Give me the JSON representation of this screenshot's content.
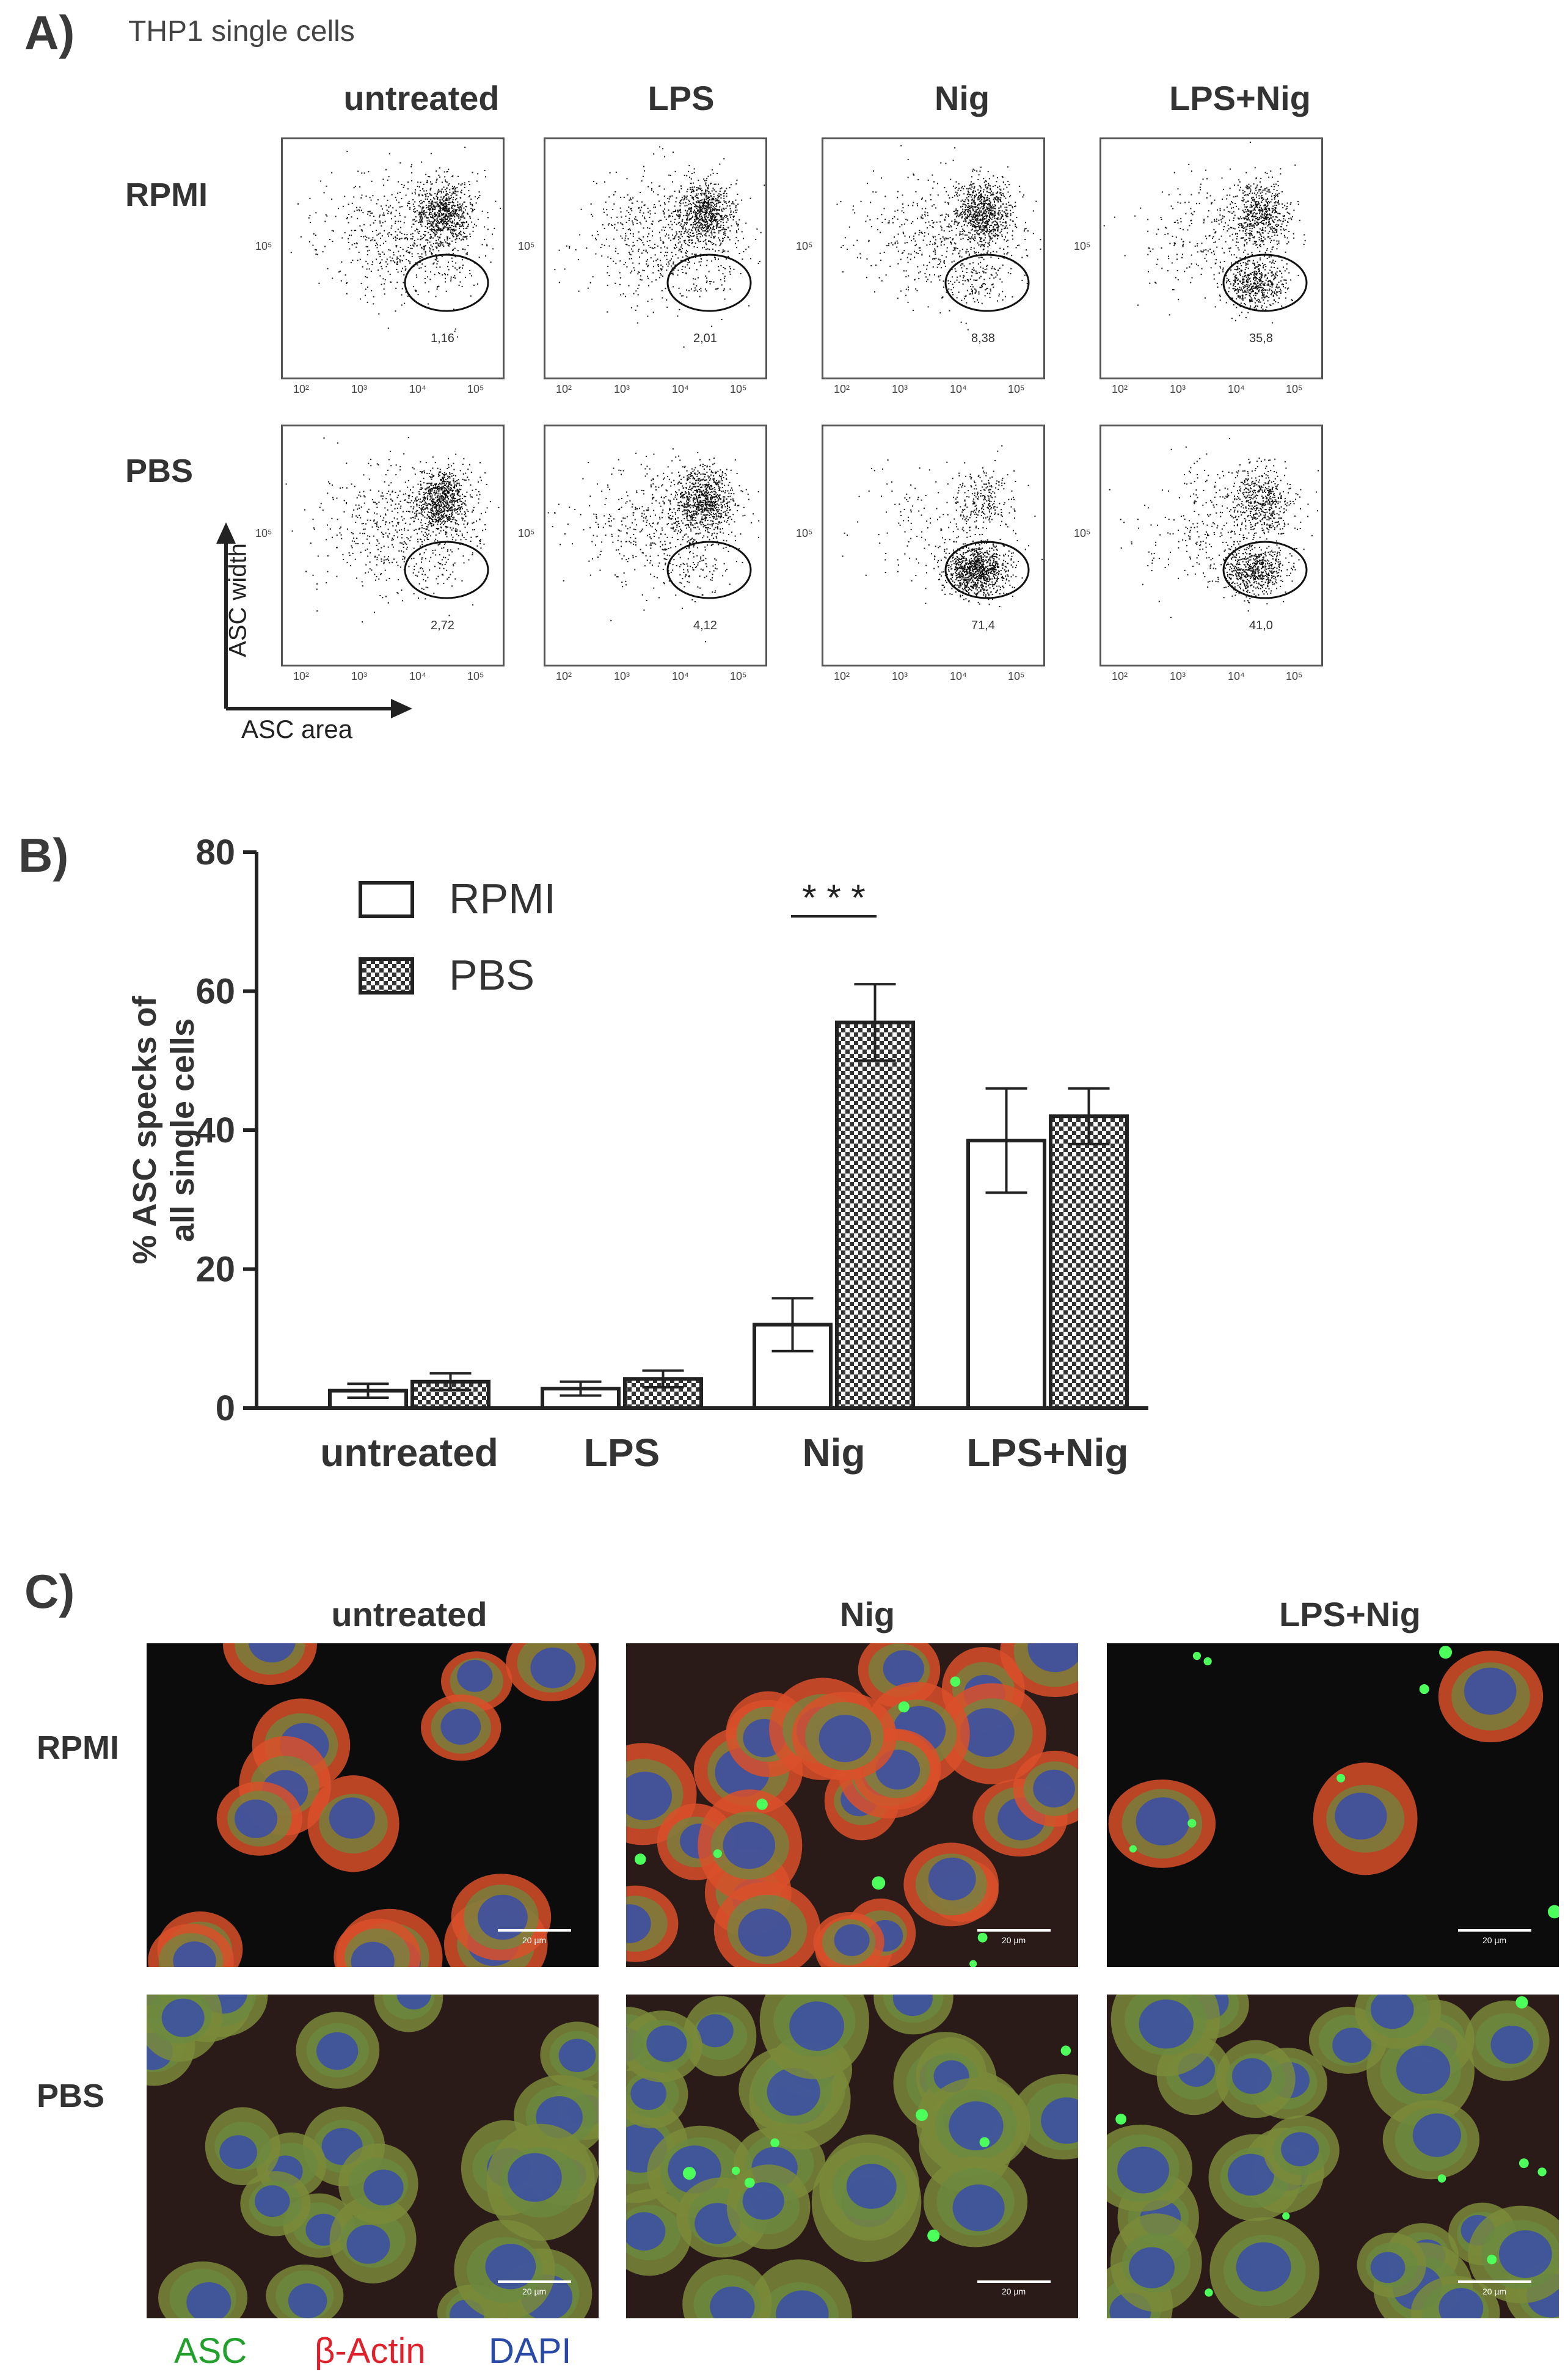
{
  "panel_a": {
    "letter": "A)",
    "subtitle": "THP1 single cells",
    "columns": [
      "untreated",
      "LPS",
      "Nig",
      "LPS+Nig"
    ],
    "rows": [
      {
        "label": "RPMI",
        "gates": [
          "1,16",
          "2,01",
          "8,38",
          "35,8"
        ]
      },
      {
        "label": "PBS",
        "gates": [
          "2,72",
          "4,12",
          "71,4",
          "41,0"
        ]
      }
    ],
    "x_ticks": [
      "10²",
      "10³",
      "10⁴",
      "10⁵"
    ],
    "y_tick": "10⁵",
    "axis_y_label": "ASC width",
    "axis_x_label": "ASC area"
  },
  "chart_data": {
    "type": "bar",
    "letter": "B)",
    "categories": [
      "untreated",
      "LPS",
      "Nig",
      "LPS+Nig"
    ],
    "series": [
      {
        "name": "RPMI",
        "values": [
          2.5,
          2.8,
          12.0,
          38.5
        ],
        "errors": [
          1.0,
          1.0,
          3.8,
          7.5
        ],
        "color": "#ffffff"
      },
      {
        "name": "PBS",
        "values": [
          3.8,
          4.2,
          55.5,
          42.0
        ],
        "errors": [
          1.2,
          1.2,
          5.5,
          4.0
        ],
        "color": "#checker"
      }
    ],
    "ylabel_line1": "% ASC specks of",
    "ylabel_line2": "all single cells",
    "ylim": [
      0,
      80
    ],
    "yticks": [
      "0",
      "20",
      "40",
      "60",
      "80"
    ],
    "significance": {
      "category": "Nig",
      "label": "* * *"
    },
    "legend_position": "top-left"
  },
  "panel_c": {
    "letter": "C)",
    "columns": [
      "untreated",
      "Nig",
      "LPS+Nig"
    ],
    "rows": [
      "RPMI",
      "PBS"
    ],
    "scale_bar": "20 µm",
    "legend": [
      {
        "label": "ASC",
        "color": "#22a02c"
      },
      {
        "label": "β-Actin",
        "color": "#e0202a"
      },
      {
        "label": "DAPI",
        "color": "#2a4aa8"
      }
    ]
  }
}
